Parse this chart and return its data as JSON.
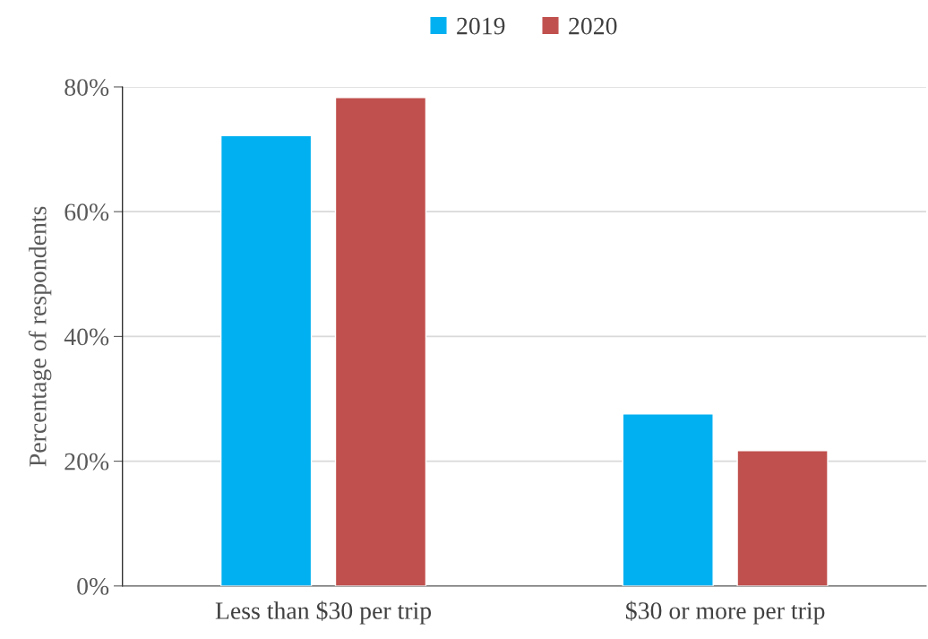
{
  "chart_data": {
    "type": "bar",
    "ylabel": "Percentage of respondents",
    "categories": [
      "Less than $30 per trip",
      "$30 or more per trip"
    ],
    "series": [
      {
        "name": "2019",
        "color": "#00b0f0",
        "values": [
          72.2,
          27.6
        ]
      },
      {
        "name": "2020",
        "color": "#c0504d",
        "values": [
          78.3,
          21.7
        ]
      }
    ],
    "ylim": [
      0,
      80
    ],
    "yticks": [
      {
        "value": 0,
        "label": "0%"
      },
      {
        "value": 20,
        "label": "20%"
      },
      {
        "value": 40,
        "label": "40%"
      },
      {
        "value": 60,
        "label": "60%"
      },
      {
        "value": 80,
        "label": "80%"
      }
    ],
    "grid": "y",
    "legend": "top"
  }
}
